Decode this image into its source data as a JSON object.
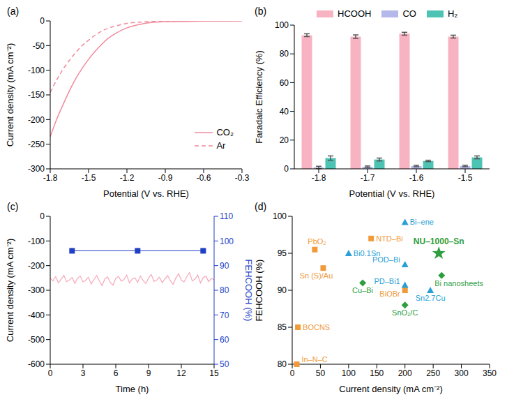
{
  "chart_data": [
    {
      "type": "line",
      "title": "(a)",
      "xlabel": "Potential (V vs. RHE)",
      "ylabel": "Current density (mA cm⁻²)",
      "x": [
        -1.8,
        -1.75,
        -1.7,
        -1.65,
        -1.6,
        -1.55,
        -1.5,
        -1.45,
        -1.4,
        -1.35,
        -1.3,
        -1.2,
        -1.1,
        -1.0,
        -0.9,
        -0.6,
        -0.3
      ],
      "series": [
        {
          "name": "CO₂",
          "color": "#f08a9c",
          "line_style": "solid",
          "values": [
            -235,
            -200,
            -170,
            -142,
            -117,
            -96,
            -78,
            -62,
            -48,
            -36,
            -27,
            -14,
            -7,
            -3,
            -1.5,
            -0.5,
            0
          ]
        },
        {
          "name": "Ar",
          "color": "#f08a9c",
          "line_style": "dashed",
          "values": [
            -145,
            -120,
            -98,
            -80,
            -64,
            -50,
            -39,
            -29,
            -21,
            -15,
            -11,
            -5,
            -2.5,
            -1,
            -0.5,
            0,
            0
          ]
        }
      ],
      "xlim": [
        -1.8,
        -0.3
      ],
      "xticks": [
        -1.8,
        -1.5,
        -1.2,
        -0.9,
        -0.6,
        -0.3
      ],
      "ylim": [
        -300,
        0
      ],
      "yticks": [
        -300,
        -250,
        -200,
        -150,
        -100,
        -50,
        0
      ],
      "legend": "lower right"
    },
    {
      "type": "bar",
      "title": "(b)",
      "xlabel": "Potential (V vs. RHE)",
      "ylabel": "Faradaic Efficiency (%)",
      "categories": [
        "-1.8",
        "-1.7",
        "-1.6",
        "-1.5"
      ],
      "series": [
        {
          "name": "HCOOH",
          "color": "#f7b3c2",
          "values": [
            93,
            92,
            94,
            92
          ],
          "errors": [
            1,
            1.2,
            1,
            1
          ]
        },
        {
          "name": "CO",
          "color": "#b4b8ea",
          "values": [
            1,
            1.5,
            2,
            2
          ],
          "errors": [
            0.8,
            0.5,
            0.5,
            0.5
          ]
        },
        {
          "name": "H₂",
          "color": "#4cc3b3",
          "values": [
            7.5,
            6.5,
            5.5,
            8
          ],
          "errors": [
            1.5,
            1,
            0.5,
            1
          ]
        }
      ],
      "ylim": [
        0,
        100
      ],
      "yticks": [
        0,
        20,
        40,
        60,
        80,
        100
      ],
      "legend": "top"
    },
    {
      "type": "line",
      "title": "(c)",
      "xlabel": "Time (h)",
      "ylabel": "Current density (mA cm⁻²)",
      "y2label": "FEHCOOH (%)",
      "series": [
        {
          "color": "#f7a8b8",
          "x": [
            0,
            0.25,
            0.5,
            0.75,
            1,
            1.25,
            1.5,
            1.75,
            2,
            2.25,
            2.5,
            2.75,
            3,
            3.25,
            3.5,
            3.75,
            4,
            4.25,
            4.5,
            4.75,
            5,
            5.25,
            5.5,
            5.75,
            6,
            6.25,
            6.5,
            6.75,
            7,
            7.25,
            7.5,
            7.75,
            8,
            8.25,
            8.5,
            8.75,
            9,
            9.25,
            9.5,
            9.75,
            10,
            10.25,
            10.5,
            10.75,
            11,
            11.25,
            11.5,
            11.75,
            12,
            12.25,
            12.5,
            12.75,
            13,
            13.25,
            13.5,
            13.75,
            14,
            14.25,
            14.5,
            14.75,
            15
          ],
          "values": [
            -250,
            -262,
            -245,
            -270,
            -255,
            -240,
            -265,
            -258,
            -248,
            -272,
            -251,
            -243,
            -266,
            -259,
            -247,
            -275,
            -256,
            -240,
            -262,
            -281,
            -254,
            -246,
            -268,
            -279,
            -252,
            -244,
            -263,
            -257,
            -238,
            -270,
            -255,
            -249,
            -268,
            -242,
            -260,
            -273,
            -251,
            -236,
            -264,
            -258,
            -247,
            -269,
            -254,
            -241,
            -261,
            -276,
            -250,
            -233,
            -259,
            -266,
            -244,
            -228,
            -262,
            -255,
            -238,
            -270,
            -249,
            -243,
            -265,
            -252,
            -258
          ]
        },
        {
          "color": "#1f3fc4",
          "axis": "y2",
          "marker": "square",
          "x": [
            2,
            8,
            14
          ],
          "values": [
            96,
            96,
            96
          ]
        }
      ],
      "xlim": [
        0,
        15
      ],
      "xticks": [
        0,
        3,
        6,
        9,
        12,
        15
      ],
      "ylim": [
        -600,
        0
      ],
      "yticks": [
        -600,
        -500,
        -400,
        -300,
        -200,
        -100,
        0
      ],
      "y2lim": [
        50,
        110
      ],
      "y2ticks": [
        50,
        60,
        70,
        80,
        90,
        100,
        110
      ]
    },
    {
      "type": "scatter",
      "title": "(d)",
      "xlabel": "Current density (mA cm⁻²)",
      "ylabel": "FEHCOOH (%)",
      "series": [
        {
          "color": "#f09a3a",
          "marker": "square",
          "x": [
            40,
            55,
            10,
            8,
            140,
            200
          ],
          "values": [
            95.5,
            93,
            85,
            80,
            97,
            90
          ],
          "labels": [
            "PbO₂",
            "Sn (S)/Au",
            "BOCNS",
            "In–N–C",
            "NTD–Bi",
            "BiOBr"
          ]
        },
        {
          "color": "#2a9fd6",
          "marker": "triangle",
          "x": [
            200,
            100,
            200,
            200,
            245
          ],
          "values": [
            99.2,
            95,
            93.5,
            90.7,
            90
          ],
          "labels": [
            "Bi–ene",
            "Bi0.1Sn",
            "POD–Bi",
            "PD–Bi1",
            "Sn2.7Cu"
          ]
        },
        {
          "color": "#2e9e3e",
          "marker": "diamond",
          "x": [
            125,
            200,
            265
          ],
          "values": [
            91,
            88,
            92
          ],
          "labels": [
            "Cu–Bi",
            "SnO₂/C",
            "Bi nanosheets"
          ]
        },
        {
          "color": "#2e9e3e",
          "marker": "star",
          "x": [
            260
          ],
          "values": [
            95
          ],
          "labels": [
            "NU–1000–Sn"
          ]
        }
      ],
      "xlim": [
        0,
        350
      ],
      "xticks": [
        0,
        50,
        100,
        150,
        200,
        250,
        300,
        350
      ],
      "ylim": [
        80,
        100
      ],
      "yticks": [
        80,
        85,
        90,
        95,
        100
      ]
    }
  ]
}
